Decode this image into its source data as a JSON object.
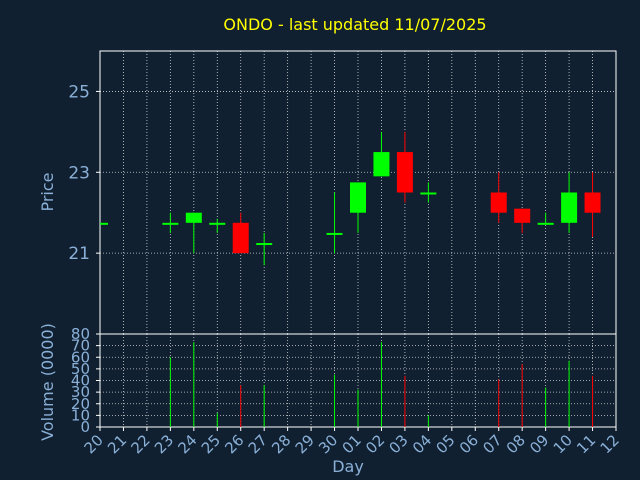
{
  "chart_data": {
    "type": "candlestick",
    "title": "ONDO - last updated 11/07/2025",
    "xlabel": "Day",
    "ylabel": "Price",
    "volume_label": "Volume (0000)",
    "colors": {
      "background": "#102030",
      "axes": "#ffffff",
      "grid": "#ffffff",
      "title": "#ffff00",
      "label": "#8ab0d8",
      "up": "#00ff00",
      "down": "#ff0000"
    },
    "grid": true,
    "x_tick_labels": [
      "20",
      "21",
      "22",
      "23",
      "24",
      "25",
      "26",
      "27",
      "28",
      "29",
      "30",
      "01",
      "02",
      "03",
      "04",
      "05",
      "06",
      "07",
      "08",
      "09",
      "10",
      "11",
      "12"
    ],
    "price_ylim": [
      19.0,
      26.0
    ],
    "price_yticks": [
      21,
      23,
      25
    ],
    "volume_ylim": [
      0,
      80
    ],
    "volume_yticks": [
      0,
      10,
      20,
      30,
      40,
      50,
      60,
      70,
      80
    ],
    "candles": [
      {
        "day": "20",
        "open": 21.75,
        "high": 21.75,
        "low": 21.75,
        "close": 21.75,
        "volume": 0
      },
      {
        "day": "23",
        "open": 21.75,
        "high": 22.0,
        "low": 21.5,
        "close": 21.75,
        "volume": 60
      },
      {
        "day": "24",
        "open": 21.75,
        "high": 22.0,
        "low": 21.0,
        "close": 22.0,
        "volume": 73
      },
      {
        "day": "25",
        "open": 21.75,
        "high": 21.85,
        "low": 21.5,
        "close": 21.75,
        "volume": 12
      },
      {
        "day": "26",
        "open": 21.75,
        "high": 22.0,
        "low": 21.0,
        "close": 21.0,
        "volume": 36
      },
      {
        "day": "27",
        "open": 21.25,
        "high": 21.5,
        "low": 20.7,
        "close": 21.25,
        "volume": 36
      },
      {
        "day": "30",
        "open": 21.5,
        "high": 22.5,
        "low": 21.0,
        "close": 21.5,
        "volume": 45
      },
      {
        "day": "01",
        "open": 22.0,
        "high": 22.75,
        "low": 21.5,
        "close": 22.75,
        "volume": 32
      },
      {
        "day": "02",
        "open": 22.9,
        "high": 24.0,
        "low": 22.9,
        "close": 23.5,
        "volume": 73
      },
      {
        "day": "03",
        "open": 23.5,
        "high": 24.0,
        "low": 22.25,
        "close": 22.5,
        "volume": 44
      },
      {
        "day": "04",
        "open": 22.5,
        "high": 22.75,
        "low": 22.25,
        "close": 22.5,
        "volume": 10
      },
      {
        "day": "07",
        "open": 22.5,
        "high": 23.0,
        "low": 21.75,
        "close": 22.0,
        "volume": 41
      },
      {
        "day": "08",
        "open": 22.1,
        "high": 22.1,
        "low": 21.5,
        "close": 21.75,
        "volume": 54
      },
      {
        "day": "09",
        "open": 21.75,
        "high": 22.0,
        "low": 21.75,
        "close": 21.75,
        "volume": 34
      },
      {
        "day": "10",
        "open": 21.75,
        "high": 23.0,
        "low": 21.5,
        "close": 22.5,
        "volume": 57
      },
      {
        "day": "11",
        "open": 22.5,
        "high": 23.0,
        "low": 21.4,
        "close": 22.0,
        "volume": 44
      }
    ]
  }
}
